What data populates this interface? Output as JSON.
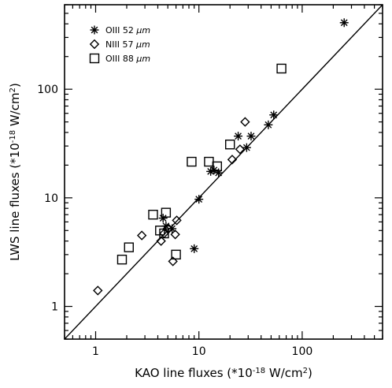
{
  "chart_data": {
    "type": "scatter",
    "title": "",
    "xlabel": "KAO line fluxes (*10",
    "xlabel_sup": "-18",
    "xlabel_unit": " W/cm",
    "xlabel_unit_sup": "2",
    "xlabel_close": ")",
    "ylabel": "LWS line fluxes (*10",
    "ylabel_sup": "-18",
    "ylabel_unit": " W/cm",
    "ylabel_unit_sup": "2",
    "ylabel_close": ")",
    "xscale": "log",
    "yscale": "log",
    "xlim": [
      0.5,
      600
    ],
    "ylim": [
      0.5,
      600
    ],
    "x_ticks": [
      1,
      10,
      100
    ],
    "x_tick_labels": [
      "1",
      "10",
      "100"
    ],
    "y_ticks": [
      1,
      10,
      100
    ],
    "y_tick_labels": [
      "1",
      "10",
      "100"
    ],
    "grid": false,
    "legend_position": "top-left",
    "reference_line": {
      "type": "y=x"
    },
    "series": [
      {
        "name": "OIII 52",
        "unit": "μm",
        "marker": "asterisk",
        "points": [
          [
            255,
            410
          ],
          [
            53,
            58
          ],
          [
            47,
            47
          ],
          [
            32,
            37
          ],
          [
            29,
            29
          ],
          [
            24,
            37
          ],
          [
            15.5,
            17
          ],
          [
            14,
            18
          ],
          [
            13,
            17.5
          ],
          [
            10,
            9.7
          ],
          [
            9,
            3.4
          ],
          [
            5.5,
            5.2
          ],
          [
            4.5,
            6.5
          ],
          [
            4.8,
            5.5
          ]
        ]
      },
      {
        "name": "NIII 57",
        "unit": "μm",
        "marker": "diamond",
        "points": [
          [
            1.05,
            1.4
          ],
          [
            2.8,
            4.5
          ],
          [
            4.3,
            4.0
          ],
          [
            4.6,
            4.7
          ],
          [
            5.1,
            5.2
          ],
          [
            5.6,
            2.6
          ],
          [
            5.9,
            4.6
          ],
          [
            6.1,
            6.2
          ],
          [
            21,
            22.5
          ],
          [
            25,
            28
          ],
          [
            28,
            50
          ]
        ]
      },
      {
        "name": "OIII 88",
        "unit": "μm",
        "marker": "square",
        "points": [
          [
            1.8,
            2.7
          ],
          [
            2.1,
            3.5
          ],
          [
            3.6,
            7.0
          ],
          [
            4.2,
            5.0
          ],
          [
            4.8,
            7.3
          ],
          [
            4.6,
            4.7
          ],
          [
            6.0,
            3.0
          ],
          [
            8.5,
            21.5
          ],
          [
            12.5,
            21.5
          ],
          [
            15,
            19.5
          ],
          [
            20,
            31
          ],
          [
            63,
            155
          ]
        ]
      }
    ]
  }
}
